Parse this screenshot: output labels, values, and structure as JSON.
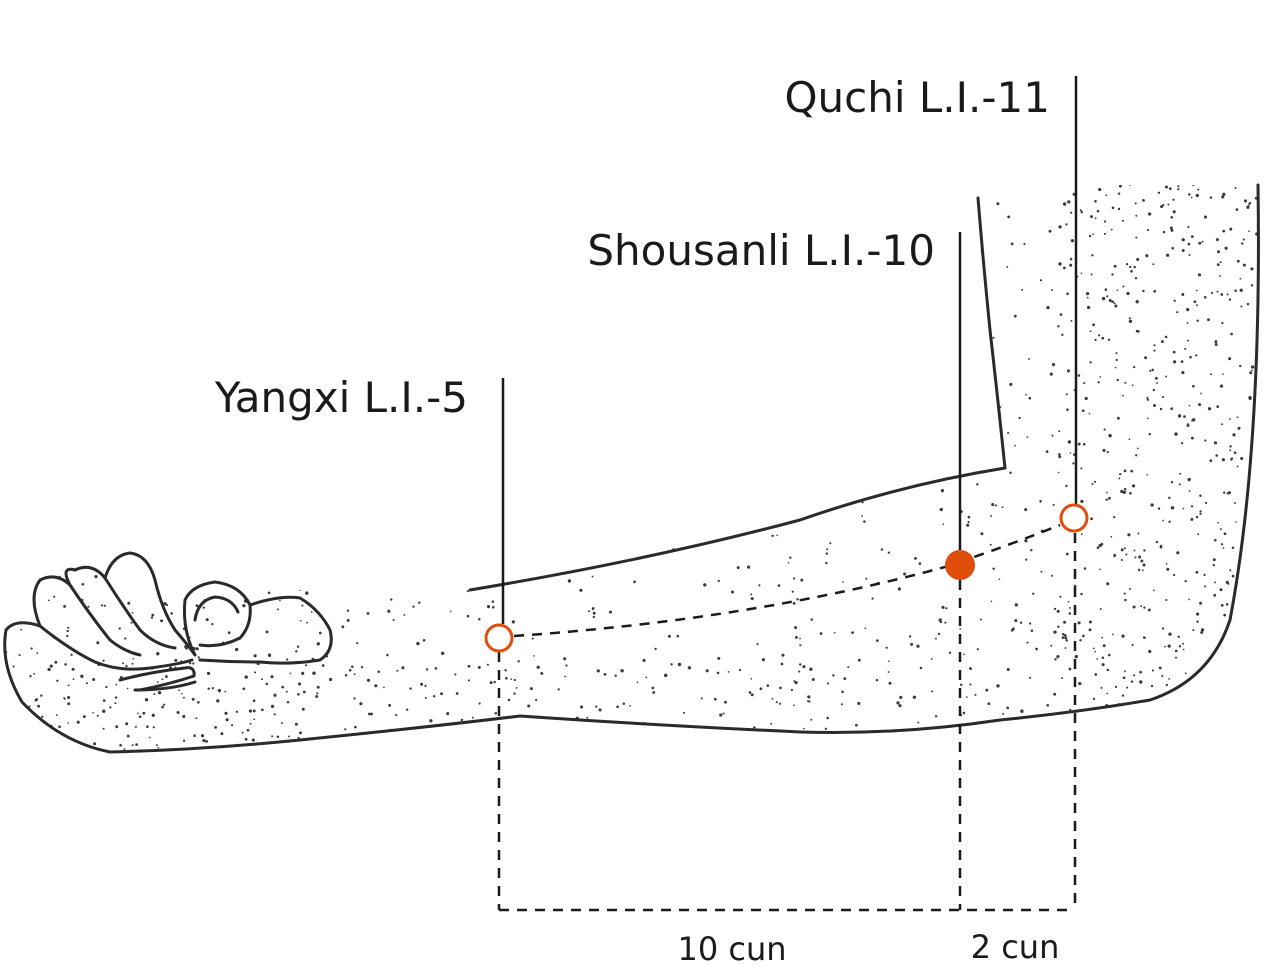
{
  "colors": {
    "accent": "#e04e0c",
    "ink": "#1a1a1a",
    "skin_stipple": "#3a3a3a"
  },
  "points": [
    {
      "name": "Yangxi L.I.-5",
      "marker": "open-circle"
    },
    {
      "name": "Shousanli L.I.-10",
      "marker": "filled-circle"
    },
    {
      "name": "Quchi L.I.-11",
      "marker": "open-circle"
    }
  ],
  "distances": [
    {
      "label": "10 cun"
    },
    {
      "label": "2 cun"
    }
  ]
}
